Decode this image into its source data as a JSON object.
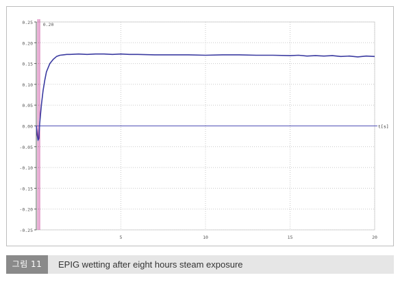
{
  "figure": {
    "label": "그림 11",
    "caption": "EPIG wetting after eight hours steam exposure"
  },
  "chart_data": {
    "type": "line",
    "title": "",
    "xlabel": "t[s]",
    "ylabel": "",
    "xlim": [
      0,
      20
    ],
    "ylim": [
      -0.25,
      0.25
    ],
    "x_ticks": [
      5,
      10,
      15,
      20
    ],
    "x_tick_labels": [
      "5",
      "10",
      "15",
      "20"
    ],
    "y_ticks": [
      0.25,
      0.2,
      0.15,
      0.1,
      0.05,
      0.0,
      -0.05,
      -0.1,
      -0.15,
      -0.2,
      -0.25
    ],
    "y_tick_labels": [
      "0.25",
      "0.20",
      "0.15",
      "0.10",
      "0.05",
      "0.00",
      "-0.05",
      "-0.10",
      "-0.15",
      "-0.20",
      "-0.25"
    ],
    "grid": true,
    "marker": {
      "x": 0.15,
      "label": "0.20",
      "color": "#c8409a"
    },
    "colors": {
      "series": "#3a3aa0",
      "zero_line": "#6b6bc0",
      "grid": "#c8c8c8"
    },
    "series": [
      {
        "x": [
          0.0,
          0.05,
          0.1,
          0.15,
          0.2,
          0.3,
          0.4,
          0.5,
          0.6,
          0.8,
          1.0,
          1.2,
          1.4,
          1.6,
          1.8,
          2.0,
          2.5,
          3.0,
          3.5,
          4.0,
          4.5,
          5.0,
          5.5,
          6.0,
          7.0,
          8.0,
          9.0,
          10.0,
          11.0,
          12.0,
          13.0,
          14.0,
          15.0,
          15.5,
          16.0,
          16.5,
          17.0,
          17.5,
          18.0,
          18.5,
          19.0,
          19.5,
          20.0
        ],
        "values": [
          0.0,
          -0.02,
          -0.035,
          -0.03,
          0.005,
          0.05,
          0.085,
          0.11,
          0.13,
          0.15,
          0.16,
          0.167,
          0.17,
          0.171,
          0.172,
          0.172,
          0.173,
          0.172,
          0.173,
          0.173,
          0.172,
          0.173,
          0.172,
          0.172,
          0.171,
          0.171,
          0.171,
          0.17,
          0.171,
          0.171,
          0.17,
          0.17,
          0.169,
          0.17,
          0.168,
          0.169,
          0.168,
          0.169,
          0.167,
          0.168,
          0.166,
          0.168,
          0.167
        ]
      }
    ]
  }
}
